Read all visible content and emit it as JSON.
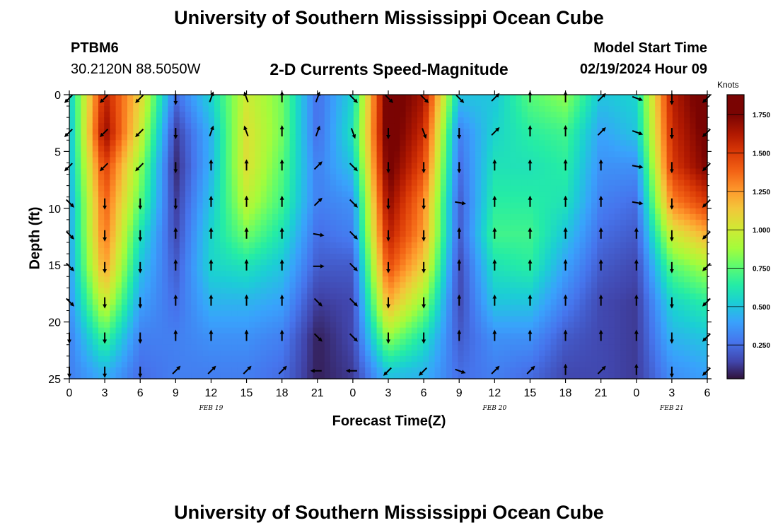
{
  "header": {
    "title": "University of Southern Mississippi Ocean Cube",
    "station_id": "PTBM6",
    "coordinates": "30.2120N  88.5050W",
    "subtitle": "2-D Currents Speed-Magnitude",
    "model_start_label": "Model Start Time",
    "model_start_value": "02/19/2024 Hour 09"
  },
  "footer": {
    "title": "University of Southern Mississippi Ocean Cube"
  },
  "chart_data": {
    "type": "heatmap",
    "title": "2-D Currents Speed-Magnitude",
    "xlabel": "Forecast Time(Z)",
    "ylabel": "Depth (ft)",
    "x_tick_labels": [
      "0",
      "3",
      "6",
      "9",
      "12",
      "15",
      "18",
      "21",
      "0",
      "3",
      "6",
      "9",
      "12",
      "15",
      "18",
      "21",
      "0",
      "3",
      "6"
    ],
    "y_ticks": [
      0,
      5,
      10,
      15,
      20,
      25
    ],
    "ylim": [
      0,
      25
    ],
    "y_inverted": true,
    "date_labels": [
      {
        "label": "FEB 19",
        "hour_index": 12
      },
      {
        "label": "FEB 20",
        "hour_index": 36
      },
      {
        "label": "FEB 21",
        "hour_index": 51
      }
    ],
    "colorbar": {
      "title": "Knots",
      "ticks": [
        "0.250",
        "0.500",
        "0.750",
        "1.000",
        "1.250",
        "1.500",
        "1.750"
      ],
      "range": [
        0.03,
        1.88
      ]
    },
    "hours": [
      0,
      3,
      6,
      9,
      12,
      15,
      18,
      21,
      24,
      27,
      30,
      33,
      36,
      39,
      42,
      45,
      48,
      51,
      54
    ],
    "depths": [
      0,
      3.4,
      6.3,
      9.5,
      12.3,
      15.1,
      18.3,
      21.4,
      24.5
    ],
    "speed_profiles": [
      {
        "hour": 0,
        "knots": [
          0.5,
          0.45,
          0.45,
          0.4,
          0.4,
          0.38,
          0.35,
          0.3,
          0.3
        ]
      },
      {
        "hour": 3,
        "knots": [
          1.6,
          1.7,
          1.5,
          1.4,
          1.35,
          1.25,
          1.0,
          0.7,
          0.45
        ]
      },
      {
        "hour": 6,
        "knots": [
          1.1,
          1.0,
          0.85,
          0.75,
          0.6,
          0.5,
          0.4,
          0.3,
          0.25
        ]
      },
      {
        "hour": 9,
        "knots": [
          0.25,
          0.12,
          0.08,
          0.12,
          0.15,
          0.2,
          0.25,
          0.3,
          0.3
        ]
      },
      {
        "hour": 12,
        "knots": [
          0.55,
          0.45,
          0.45,
          0.5,
          0.55,
          0.55,
          0.45,
          0.35,
          0.3
        ]
      },
      {
        "hour": 15,
        "knots": [
          1.0,
          1.05,
          1.05,
          0.95,
          0.8,
          0.6,
          0.45,
          0.35,
          0.3
        ]
      },
      {
        "hour": 18,
        "knots": [
          0.8,
          0.8,
          0.75,
          0.7,
          0.6,
          0.5,
          0.4,
          0.3,
          0.25
        ]
      },
      {
        "hour": 21,
        "knots": [
          0.25,
          0.25,
          0.3,
          0.3,
          0.25,
          0.2,
          0.12,
          0.06,
          0.06
        ]
      },
      {
        "hour": 24,
        "knots": [
          0.55,
          0.6,
          0.5,
          0.35,
          0.3,
          0.2,
          0.15,
          0.15,
          0.12
        ]
      },
      {
        "hour": 27,
        "knots": [
          1.85,
          1.85,
          1.8,
          1.7,
          1.6,
          1.45,
          1.2,
          0.85,
          0.5
        ]
      },
      {
        "hour": 30,
        "knots": [
          1.65,
          1.55,
          1.45,
          1.3,
          1.25,
          1.1,
          0.85,
          0.6,
          0.45
        ]
      },
      {
        "hour": 33,
        "knots": [
          0.5,
          0.3,
          0.25,
          0.2,
          0.2,
          0.15,
          0.15,
          0.2,
          0.25
        ]
      },
      {
        "hour": 36,
        "knots": [
          0.5,
          0.55,
          0.6,
          0.65,
          0.7,
          0.6,
          0.5,
          0.35,
          0.3
        ]
      },
      {
        "hour": 39,
        "knots": [
          0.75,
          0.65,
          0.6,
          0.65,
          0.7,
          0.65,
          0.5,
          0.35,
          0.25
        ]
      },
      {
        "hour": 42,
        "knots": [
          0.85,
          0.7,
          0.65,
          0.6,
          0.5,
          0.4,
          0.3,
          0.2,
          0.15
        ]
      },
      {
        "hour": 45,
        "knots": [
          0.5,
          0.4,
          0.35,
          0.3,
          0.25,
          0.2,
          0.15,
          0.15,
          0.15
        ]
      },
      {
        "hour": 48,
        "knots": [
          0.55,
          0.5,
          0.35,
          0.25,
          0.2,
          0.15,
          0.12,
          0.12,
          0.12
        ]
      },
      {
        "hour": 51,
        "knots": [
          1.6,
          1.55,
          1.5,
          1.3,
          1.0,
          0.75,
          0.55,
          0.45,
          0.35
        ]
      },
      {
        "hour": 54,
        "knots": [
          1.85,
          1.8,
          1.75,
          1.5,
          1.2,
          0.9,
          0.65,
          0.5,
          0.4
        ]
      }
    ],
    "arrow_hours": [
      0,
      3,
      6,
      9,
      12,
      15,
      18,
      21,
      24,
      27,
      30,
      33,
      36,
      39,
      42,
      45,
      48,
      51,
      54
    ],
    "arrow_depths": [
      0.3,
      3.3,
      6.3,
      9.5,
      12.3,
      15.1,
      18.2,
      21.3,
      24.3
    ],
    "arrow_directions_deg": [
      [
        225,
        225,
        225,
        135,
        135,
        135,
        135,
        180,
        180
      ],
      [
        225,
        225,
        225,
        180,
        180,
        180,
        180,
        180,
        180
      ],
      [
        225,
        225,
        225,
        180,
        180,
        180,
        180,
        180,
        180
      ],
      [
        180,
        180,
        180,
        180,
        0,
        0,
        0,
        0,
        45
      ],
      [
        20,
        20,
        0,
        0,
        0,
        0,
        0,
        0,
        45
      ],
      [
        340,
        340,
        0,
        0,
        0,
        0,
        0,
        0,
        45
      ],
      [
        0,
        0,
        0,
        0,
        0,
        0,
        0,
        0,
        45
      ],
      [
        20,
        20,
        45,
        45,
        100,
        90,
        135,
        135,
        270
      ],
      [
        135,
        160,
        135,
        135,
        135,
        135,
        135,
        135,
        270
      ],
      [
        135,
        180,
        180,
        180,
        180,
        180,
        180,
        180,
        225
      ],
      [
        135,
        160,
        180,
        180,
        180,
        180,
        180,
        180,
        225
      ],
      [
        135,
        180,
        180,
        100,
        0,
        0,
        0,
        0,
        110
      ],
      [
        45,
        45,
        0,
        0,
        0,
        0,
        0,
        0,
        45
      ],
      [
        0,
        0,
        0,
        0,
        0,
        0,
        0,
        0,
        45
      ],
      [
        0,
        0,
        0,
        0,
        0,
        0,
        0,
        0,
        0
      ],
      [
        45,
        45,
        0,
        0,
        0,
        0,
        0,
        0,
        45
      ],
      [
        110,
        110,
        100,
        100,
        0,
        0,
        0,
        0,
        0
      ],
      [
        180,
        180,
        180,
        180,
        180,
        180,
        180,
        180,
        180
      ],
      [
        225,
        225,
        225,
        225,
        225,
        225,
        225,
        225,
        225
      ]
    ]
  }
}
